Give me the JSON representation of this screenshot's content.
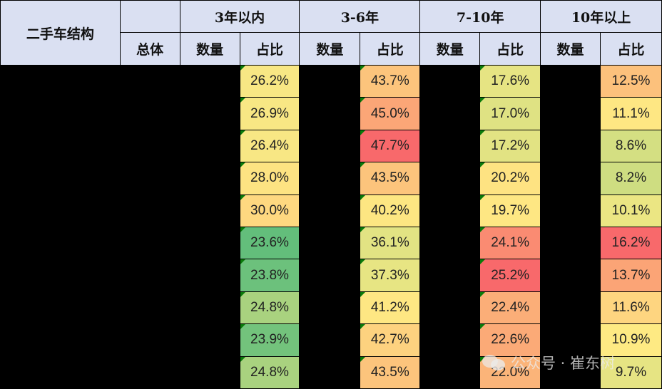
{
  "table": {
    "title": "二手车结构",
    "groups": [
      "3年以内",
      "3-6年",
      "7-10年",
      "10年以上"
    ],
    "subheaders": {
      "total": "总体",
      "count": "数量",
      "share": "占比"
    },
    "rows": [
      {
        "le3": "26.2%",
        "y3_6": "43.7%",
        "y7_10": "17.6%",
        "gt10": "12.5%"
      },
      {
        "le3": "26.9%",
        "y3_6": "45.0%",
        "y7_10": "17.0%",
        "gt10": "11.1%"
      },
      {
        "le3": "26.4%",
        "y3_6": "47.7%",
        "y7_10": "17.2%",
        "gt10": "8.6%"
      },
      {
        "le3": "28.0%",
        "y3_6": "43.5%",
        "y7_10": "20.2%",
        "gt10": "8.2%"
      },
      {
        "le3": "30.0%",
        "y3_6": "40.2%",
        "y7_10": "19.7%",
        "gt10": "10.1%"
      },
      {
        "le3": "23.6%",
        "y3_6": "36.1%",
        "y7_10": "24.1%",
        "gt10": "16.2%"
      },
      {
        "le3": "23.8%",
        "y3_6": "37.3%",
        "y7_10": "25.2%",
        "gt10": "13.7%"
      },
      {
        "le3": "24.8%",
        "y3_6": "41.2%",
        "y7_10": "22.4%",
        "gt10": "11.6%"
      },
      {
        "le3": "23.9%",
        "y3_6": "42.7%",
        "y7_10": "22.6%",
        "gt10": "10.9%"
      },
      {
        "le3": "24.8%",
        "y3_6": "43.5%",
        "y7_10": "22.0%",
        "gt10": "9.7%"
      }
    ],
    "colors": {
      "header_bg": "#dae0f2",
      "le3": [
        "#f8e784",
        "#f8e784",
        "#f8e784",
        "#fde382",
        "#fed880",
        "#63be7b",
        "#6cc17c",
        "#a9d27f",
        "#73c37c",
        "#a9d27f"
      ],
      "y3_6": [
        "#fcc47c",
        "#fba677",
        "#f8696b",
        "#fcc47c",
        "#fde682",
        "#e2e383",
        "#e7e583",
        "#fee783",
        "#fdd27f",
        "#fcc47c"
      ],
      "y7_10": [
        "#e6e483",
        "#dfe283",
        "#e2e383",
        "#fee382",
        "#fee783",
        "#fa8b72",
        "#f8696b",
        "#fbae78",
        "#fbaa77",
        "#fbb479"
      ],
      "gt10": [
        "#fcc17c",
        "#fee783",
        "#d4df82",
        "#cedd81",
        "#ebe683",
        "#f8696b",
        "#fba476",
        "#fed580",
        "#feea83",
        "#e6e483"
      ]
    }
  },
  "watermark": {
    "text": "公众号 · 崔东树"
  }
}
